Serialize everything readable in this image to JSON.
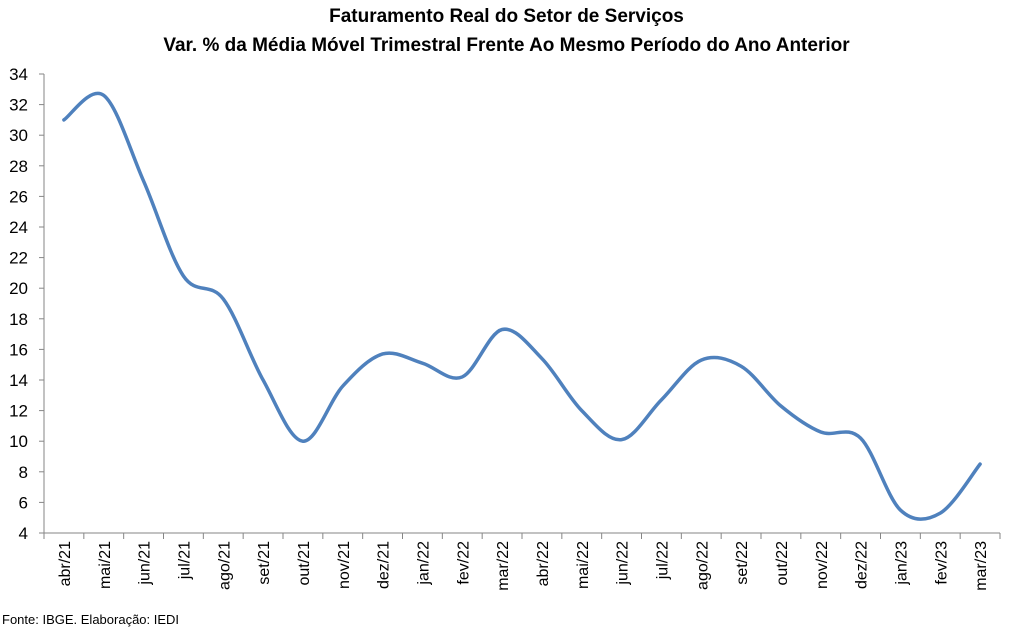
{
  "chart_data": {
    "type": "line",
    "title": "Faturamento Real do Setor de Serviços",
    "subtitle": "Var. % da Média Móvel Trimestral Frente Ao Mesmo Período do Ano Anterior",
    "xlabel": "",
    "ylabel": "",
    "ylim": [
      4,
      34
    ],
    "yticks": [
      4,
      6,
      8,
      10,
      12,
      14,
      16,
      18,
      20,
      22,
      24,
      26,
      28,
      30,
      32,
      34
    ],
    "grid": false,
    "legend": "none",
    "categories": [
      "abr/21",
      "mai/21",
      "jun/21",
      "jul/21",
      "ago/21",
      "set/21",
      "out/21",
      "nov/21",
      "dez/21",
      "jan/22",
      "fev/22",
      "mar/22",
      "abr/22",
      "mai/22",
      "jun/22",
      "jul/22",
      "ago/22",
      "set/22",
      "out/22",
      "nov/22",
      "dez/22",
      "jan/23",
      "fev/23",
      "mar/23"
    ],
    "series": [
      {
        "color": "#4F81BD",
        "values": [
          31.0,
          32.6,
          27.0,
          20.8,
          19.3,
          14.0,
          10.0,
          13.6,
          15.7,
          15.1,
          14.2,
          17.3,
          15.4,
          12.0,
          10.1,
          12.7,
          15.3,
          14.9,
          12.3,
          10.6,
          10.2,
          5.5,
          5.3,
          8.5
        ]
      }
    ]
  },
  "footer": "Fonte: IBGE. Elaboração: IEDI",
  "colors": {
    "line": "#4F81BD",
    "axis": "#868686"
  }
}
